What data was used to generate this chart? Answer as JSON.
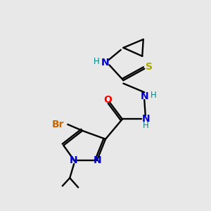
{
  "bg_color": "#e8e8e8",
  "atom_colors": {
    "C": "#000000",
    "N": "#0000cc",
    "O": "#ff0000",
    "S": "#aaaa00",
    "Br": "#cc6600",
    "H": "#008888"
  },
  "figsize": [
    3.0,
    3.0
  ],
  "dpi": 100
}
